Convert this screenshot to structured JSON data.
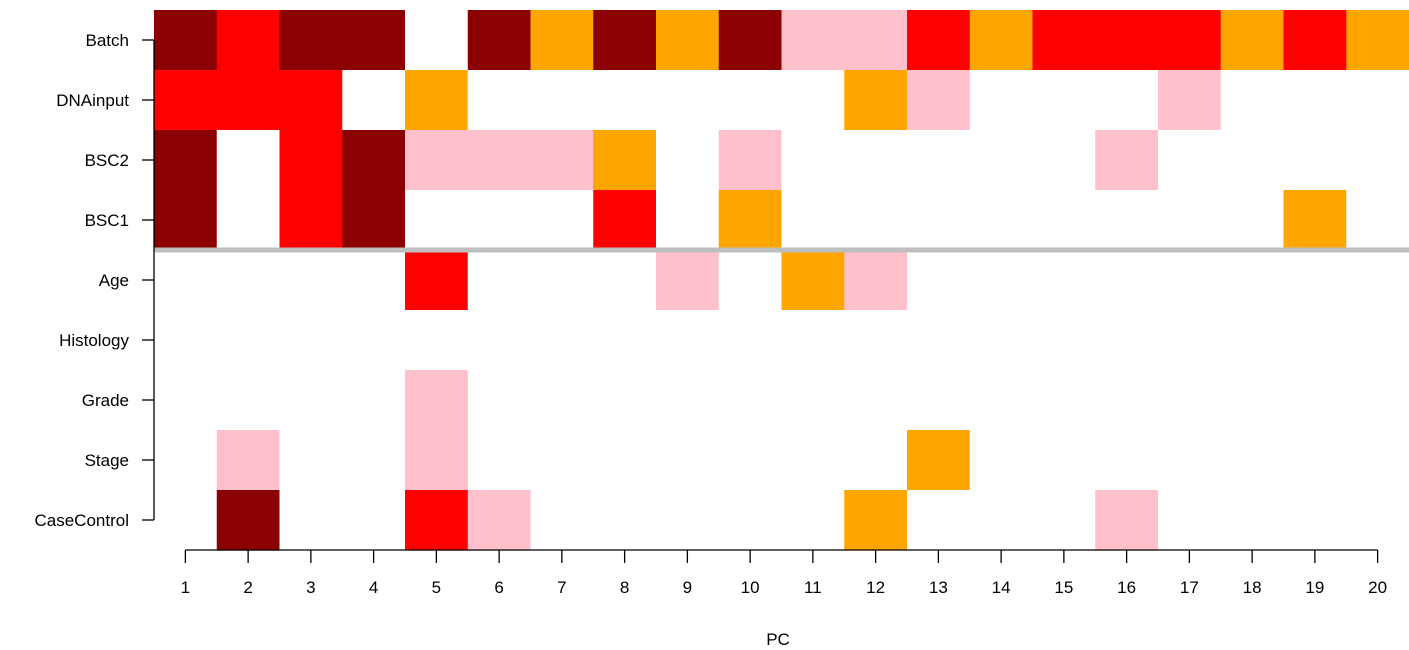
{
  "chart_data": {
    "type": "heatmap",
    "title": "",
    "xlabel": "PC",
    "ylabel": "",
    "categories": [
      "1",
      "2",
      "3",
      "4",
      "5",
      "6",
      "7",
      "8",
      "9",
      "10",
      "11",
      "12",
      "13",
      "14",
      "15",
      "16",
      "17",
      "18",
      "19",
      "20"
    ],
    "rows": [
      "Batch",
      "DNAinput",
      "BSC2",
      "BSC1",
      "Age",
      "Histology",
      "Grade",
      "Stage",
      "CaseControl"
    ],
    "separator_after_row": "BSC1",
    "levels": {
      "0": "#ffffff",
      "1": "#ffc0cb",
      "2": "#ffa500",
      "3": "#ff0000",
      "4": "#8b0000"
    },
    "separator_color": "#bebebe",
    "values": [
      [
        4,
        3,
        4,
        4,
        0,
        4,
        2,
        4,
        2,
        4,
        1,
        1,
        3,
        2,
        3,
        3,
        3,
        2,
        3,
        2
      ],
      [
        3,
        3,
        3,
        0,
        2,
        0,
        0,
        0,
        0,
        0,
        0,
        2,
        1,
        0,
        0,
        0,
        1,
        0,
        0,
        0
      ],
      [
        4,
        0,
        3,
        4,
        1,
        1,
        1,
        2,
        0,
        1,
        0,
        0,
        0,
        0,
        0,
        1,
        0,
        0,
        0,
        0
      ],
      [
        4,
        0,
        3,
        4,
        0,
        0,
        0,
        3,
        0,
        2,
        0,
        0,
        0,
        0,
        0,
        0,
        0,
        0,
        2,
        0
      ],
      [
        0,
        0,
        0,
        0,
        3,
        0,
        0,
        0,
        1,
        0,
        2,
        1,
        0,
        0,
        0,
        0,
        0,
        0,
        0,
        0
      ],
      [
        0,
        0,
        0,
        0,
        0,
        0,
        0,
        0,
        0,
        0,
        0,
        0,
        0,
        0,
        0,
        0,
        0,
        0,
        0,
        0
      ],
      [
        0,
        0,
        0,
        0,
        1,
        0,
        0,
        0,
        0,
        0,
        0,
        0,
        0,
        0,
        0,
        0,
        0,
        0,
        0,
        0
      ],
      [
        0,
        1,
        0,
        0,
        1,
        0,
        0,
        0,
        0,
        0,
        0,
        0,
        2,
        0,
        0,
        0,
        0,
        0,
        0,
        0
      ],
      [
        0,
        4,
        0,
        0,
        3,
        1,
        0,
        0,
        0,
        0,
        0,
        2,
        0,
        0,
        0,
        1,
        0,
        0,
        0,
        0
      ]
    ]
  }
}
